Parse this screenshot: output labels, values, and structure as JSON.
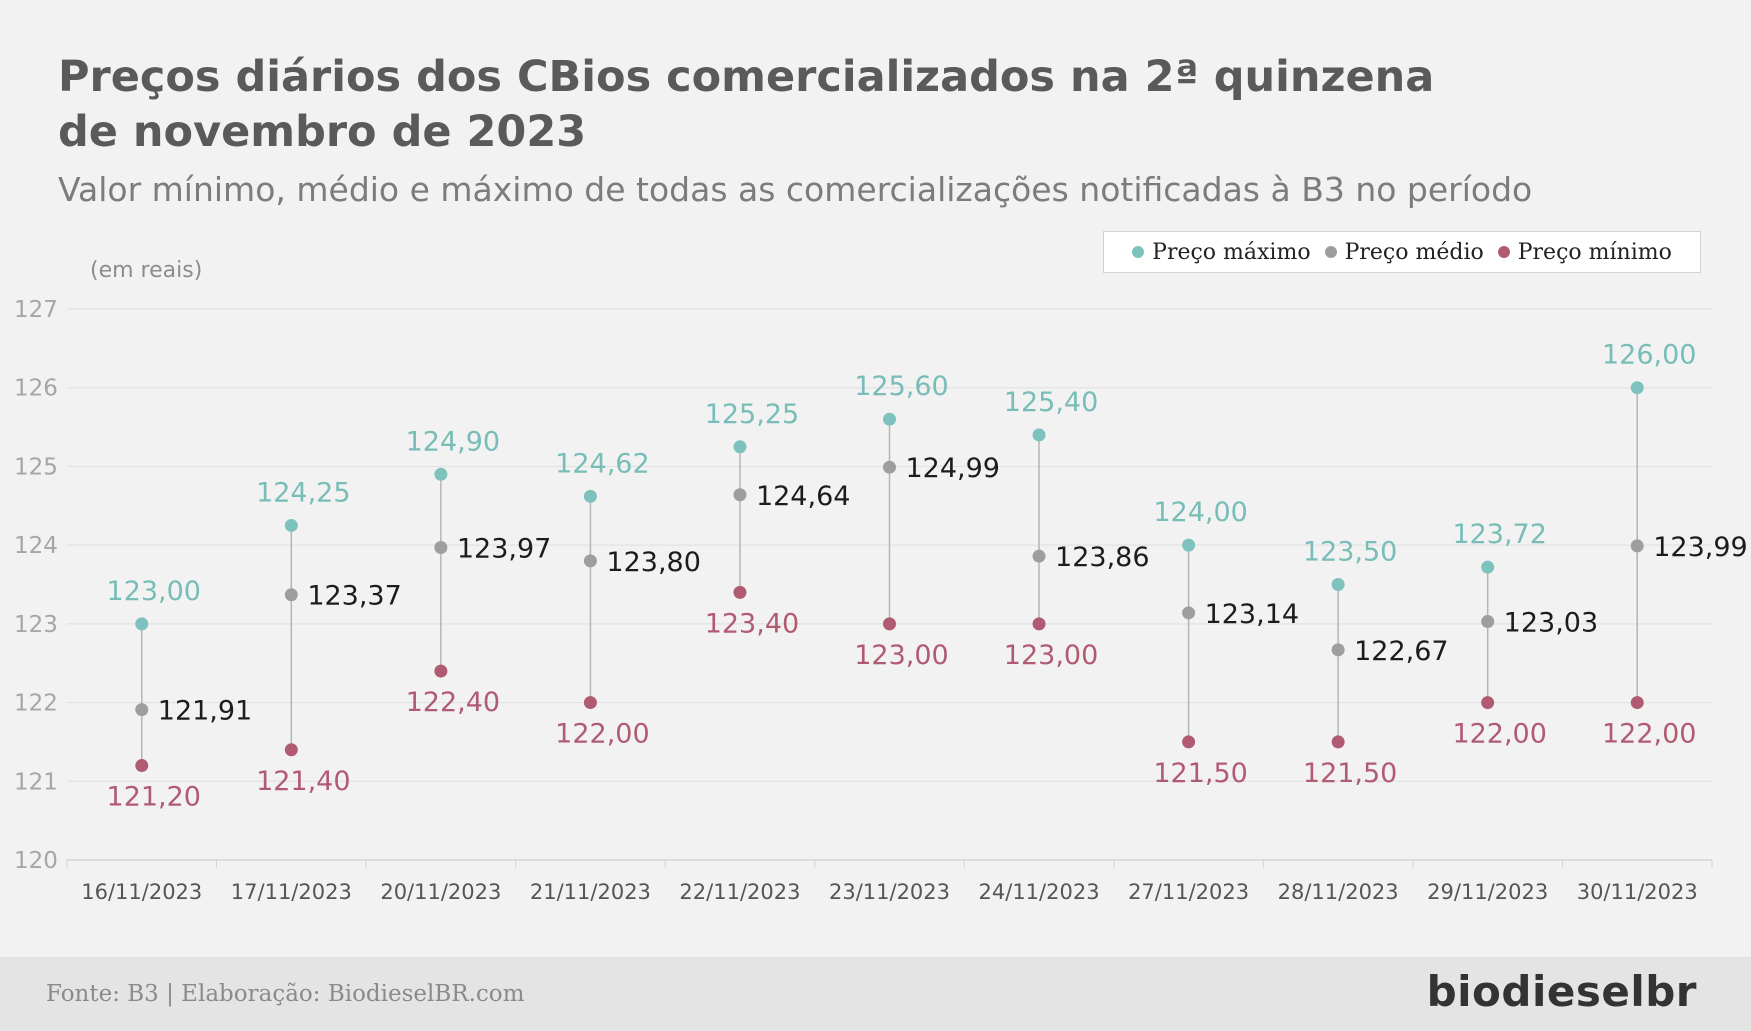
{
  "header": {
    "title": "Preços diários dos CBios comercializados na 2ª quinzena de novembro de 2023",
    "subtitle": "Valor mínimo, médio e máximo de todas as comercializações notificadas à B3 no período",
    "unit": "(em reais)"
  },
  "legend": {
    "items": [
      {
        "label": "Preço máximo",
        "color": "#7dc2bd"
      },
      {
        "label": "Preço médio",
        "color": "#9e9e9e"
      },
      {
        "label": "Preço mínimo",
        "color": "#b15b73"
      }
    ]
  },
  "footer": {
    "source": "Fonte: B3 | Elaboração: BiodieselBR.com",
    "brand": "biodieselbr"
  },
  "chart_data": {
    "type": "scatter",
    "title": "Preços diários dos CBios comercializados na 2ª quinzena de novembro de 2023",
    "subtitle": "Valor mínimo, médio e máximo de todas as comercializações notificadas à B3 no período",
    "ylabel": "(em reais)",
    "xlabel": "",
    "ylim": [
      120,
      127
    ],
    "yticks": [
      120,
      121,
      122,
      123,
      124,
      125,
      126,
      127
    ],
    "grid": true,
    "legend_position": "top-right",
    "categories": [
      "16/11/2023",
      "17/11/2023",
      "20/11/2023",
      "21/11/2023",
      "22/11/2023",
      "23/11/2023",
      "24/11/2023",
      "27/11/2023",
      "28/11/2023",
      "29/11/2023",
      "30/11/2023"
    ],
    "series": [
      {
        "name": "Preço máximo",
        "color": "#7dc2bd",
        "label_color": "#78bdb7",
        "values": [
          123.0,
          124.25,
          124.9,
          124.62,
          125.25,
          125.6,
          125.4,
          124.0,
          123.5,
          123.72,
          126.0
        ],
        "labels": [
          "123,00",
          "124,25",
          "124,90",
          "124,62",
          "125,25",
          "125,60",
          "125,40",
          "124,00",
          "123,50",
          "123,72",
          "126,00"
        ]
      },
      {
        "name": "Preço médio",
        "color": "#9e9e9e",
        "label_color": "#1c1c1c",
        "values": [
          121.91,
          123.37,
          123.97,
          123.8,
          124.64,
          124.99,
          123.86,
          123.14,
          122.67,
          123.03,
          123.99
        ],
        "labels": [
          "121,91",
          "123,37",
          "123,97",
          "123,80",
          "124,64",
          "124,99",
          "123,86",
          "123,14",
          "122,67",
          "123,03",
          "123,99"
        ]
      },
      {
        "name": "Preço mínimo",
        "color": "#b15b73",
        "label_color": "#b15b73",
        "values": [
          121.2,
          121.4,
          122.4,
          122.0,
          123.4,
          123.0,
          123.0,
          121.5,
          121.5,
          122.0,
          122.0
        ],
        "labels": [
          "121,20",
          "121,40",
          "122,40",
          "122,00",
          "123,40",
          "123,00",
          "123,00",
          "121,50",
          "121,50",
          "122,00",
          "122,00"
        ]
      }
    ]
  }
}
